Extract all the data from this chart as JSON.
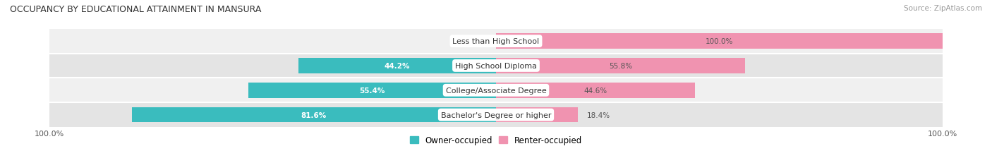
{
  "title": "OCCUPANCY BY EDUCATIONAL ATTAINMENT IN MANSURA",
  "source": "Source: ZipAtlas.com",
  "categories": [
    "Less than High School",
    "High School Diploma",
    "College/Associate Degree",
    "Bachelor's Degree or higher"
  ],
  "owner_pct": [
    0.0,
    44.2,
    55.4,
    81.6
  ],
  "renter_pct": [
    100.0,
    55.8,
    44.6,
    18.4
  ],
  "owner_color": "#3abcbe",
  "renter_color": "#f093b0",
  "row_bg_colors": [
    "#f0f0f0",
    "#e4e4e4",
    "#f0f0f0",
    "#e4e4e4"
  ],
  "title_color": "#333333",
  "source_color": "#999999",
  "label_color": "#333333",
  "pct_label_inside_color": "#ffffff",
  "pct_label_outside_color": "#555555",
  "figsize": [
    14.06,
    2.32
  ],
  "dpi": 100,
  "bar_height": 0.62,
  "legend_owner": "Owner-occupied",
  "legend_renter": "Renter-occupied",
  "axis_label_left": "100.0%",
  "axis_label_right": "100.0%"
}
